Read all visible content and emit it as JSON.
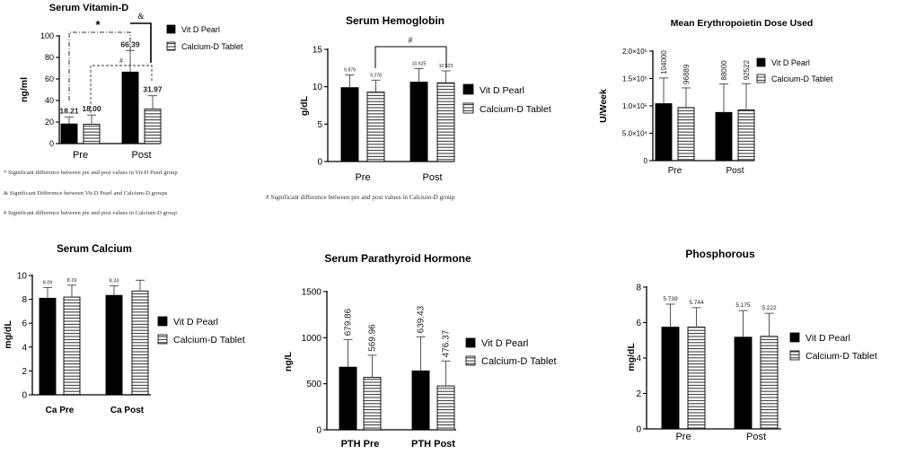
{
  "figure": {
    "notes_vitd": [
      "* Significant difference between pre and post values in Vit-D Pearl group",
      "& Significant Difference between Vit-D Pearl and Calcium-D groups",
      "# Significant difference between pre and post values in Calcium-D group"
    ],
    "note_hb": "# Significant difference between pre and post values in Calcium-D group",
    "colors": {
      "vit_d_pearl": "#000000",
      "calcium_d_tablet": "striped"
    }
  },
  "chart_data": [
    {
      "id": "vitd",
      "type": "bar",
      "title": "Serum Vitamin-D",
      "xlabel": "",
      "ylabel": "ng/ml",
      "categories": [
        "Pre",
        "Post"
      ],
      "ylim": [
        0,
        100
      ],
      "yticks": [
        "0",
        "20",
        "40",
        "60",
        "80",
        "100"
      ],
      "legend_position": "right",
      "series": [
        {
          "name": "Vit D Pearl",
          "values": [
            18.21,
            66.39
          ],
          "errors": [
            6.5,
            20
          ],
          "labels": [
            "18.21",
            "66.39"
          ]
        },
        {
          "name": "Calcium-D Tablet",
          "values": [
            18.0,
            31.97
          ],
          "errors": [
            8.5,
            12.5
          ],
          "labels": [
            "18.00",
            "31.97"
          ]
        }
      ],
      "annotations": [
        "*",
        "&",
        "#"
      ]
    },
    {
      "id": "hb",
      "type": "bar",
      "title": "Serum Hemoglobin",
      "xlabel": "",
      "ylabel": "g/dL",
      "categories": [
        "Pre",
        "Post"
      ],
      "ylim": [
        0,
        15
      ],
      "yticks": [
        "0",
        "5",
        "10",
        "15"
      ],
      "legend_position": "right",
      "series": [
        {
          "name": "Vit D Pearl",
          "values": [
            9.879,
            10.625
          ],
          "errors": [
            1.7,
            1.8
          ],
          "labels": [
            "9.879",
            "10.625"
          ]
        },
        {
          "name": "Calcium-D Tablet",
          "values": [
            9.278,
            10.523
          ],
          "errors": [
            1.6,
            1.6
          ],
          "labels": [
            "9.278",
            "10.523"
          ]
        }
      ],
      "annotations": [
        "#"
      ]
    },
    {
      "id": "epo",
      "type": "bar",
      "title": "Mean Erythropoietin Dose Used",
      "xlabel": "",
      "ylabel": "U/Week",
      "categories": [
        "Pre",
        "Post"
      ],
      "ylim": [
        0,
        200000
      ],
      "yticks": [
        "0",
        "5.0×10⁴",
        "1.0×10⁵",
        "1.5×10⁵",
        "2.0×10⁵"
      ],
      "legend_position": "right",
      "series": [
        {
          "name": "Vit D Pearl",
          "values": [
            104000,
            88000
          ],
          "errors": [
            47000,
            52000
          ],
          "labels": [
            "104000",
            "88000"
          ]
        },
        {
          "name": "Calcium-D Tablet",
          "values": [
            96889,
            92522
          ],
          "errors": [
            36000,
            48000
          ],
          "labels": [
            "96889",
            "92522"
          ]
        }
      ],
      "annotations": []
    },
    {
      "id": "ca",
      "type": "bar",
      "title": "Serum Calcium",
      "xlabel": "",
      "ylabel": "mg/dL",
      "categories": [
        "Ca Pre",
        "Ca Post"
      ],
      "ylim": [
        0,
        10
      ],
      "yticks": [
        "0",
        "2",
        "4",
        "6",
        "8",
        "10"
      ],
      "legend_position": "right",
      "series": [
        {
          "name": "Vit D Pearl",
          "values": [
            8.09,
            8.33
          ],
          "errors": [
            0.9,
            0.8
          ],
          "labels": [
            "8.09",
            "8.33"
          ]
        },
        {
          "name": "Calcium-D Tablet",
          "values": [
            8.19,
            8.7
          ],
          "errors": [
            1.0,
            0.9
          ],
          "labels": [
            "8.19",
            ""
          ]
        }
      ],
      "annotations": []
    },
    {
      "id": "pth",
      "type": "bar",
      "title": "Serum Parathyroid Hormone",
      "xlabel": "",
      "ylabel": "ng/L",
      "categories": [
        "PTH Pre",
        "PTH Post"
      ],
      "ylim": [
        0,
        1500
      ],
      "yticks": [
        "0",
        "500",
        "1000",
        "1500"
      ],
      "legend_position": "right",
      "series": [
        {
          "name": "Vit D Pearl",
          "values": [
            679.86,
            639.43
          ],
          "errors": [
            300,
            370
          ],
          "labels": [
            "679.86",
            "639.43"
          ]
        },
        {
          "name": "Calcium-D Tablet",
          "values": [
            569.96,
            476.37
          ],
          "errors": [
            240,
            270
          ],
          "labels": [
            "569.96",
            "476.37"
          ]
        }
      ],
      "annotations": []
    },
    {
      "id": "phos",
      "type": "bar",
      "title": "Phosphorous",
      "xlabel": "",
      "ylabel": "mg/dL",
      "categories": [
        "Pre",
        "Post"
      ],
      "ylim": [
        0,
        8
      ],
      "yticks": [
        "0",
        "2",
        "4",
        "6",
        "8"
      ],
      "legend_position": "right",
      "series": [
        {
          "name": "Vit D Pearl",
          "values": [
            5.739,
            5.175
          ],
          "errors": [
            1.3,
            1.5
          ],
          "labels": [
            "5.739",
            "5.175"
          ]
        },
        {
          "name": "Calcium-D Tablet",
          "values": [
            5.744,
            5.222
          ],
          "errors": [
            1.1,
            1.3
          ],
          "labels": [
            "5.744",
            "5.222"
          ]
        }
      ],
      "annotations": []
    }
  ]
}
